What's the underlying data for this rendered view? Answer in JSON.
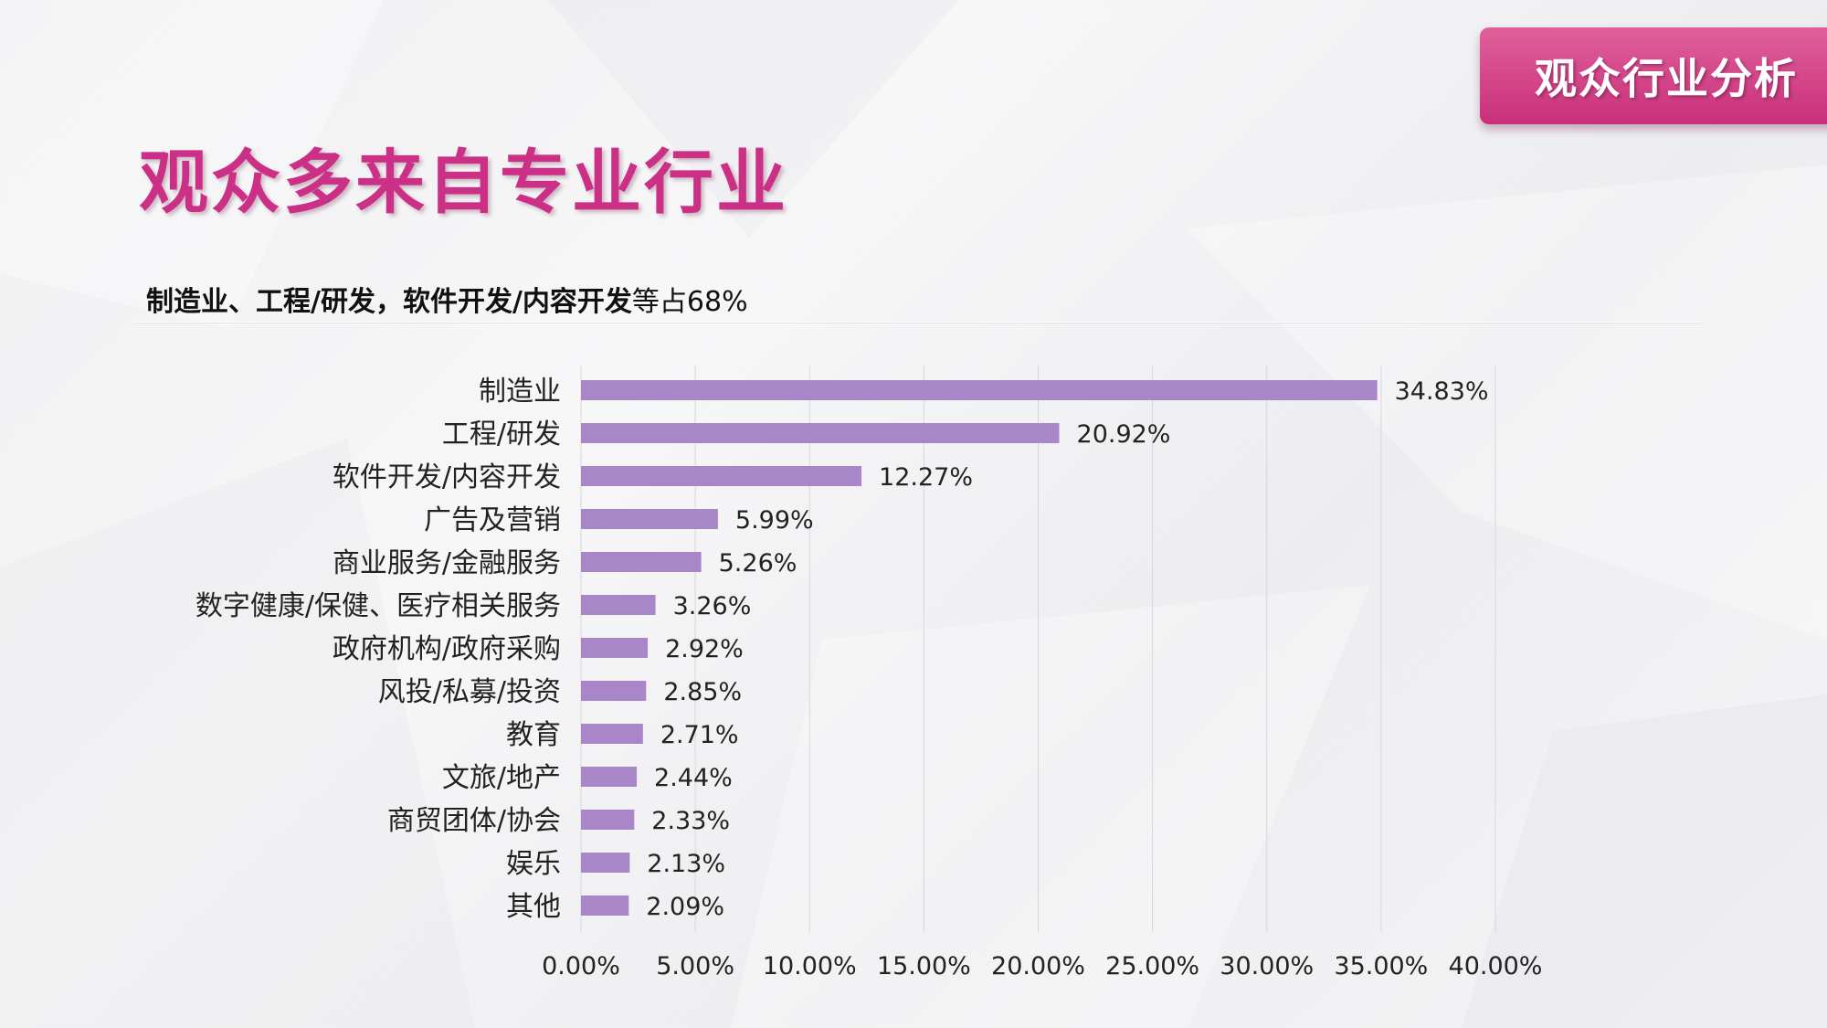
{
  "corner_tag": {
    "label": "观众行业分析"
  },
  "page_title": "观众多来自专业行业",
  "subtitle": {
    "strong": "制造业、工程/研发，软件开发/内容开发",
    "rest": "等占68%"
  },
  "colors": {
    "bar": "#a986c8",
    "title": "#cc2f86",
    "tag": "#d8468c",
    "grid": "#d7d7db"
  },
  "chart_data": {
    "type": "bar",
    "orientation": "horizontal",
    "categories": [
      "制造业",
      "工程/研发",
      "软件开发/内容开发",
      "广告及营销",
      "商业服务/金融服务",
      "数字健康/保健、医疗相关服务",
      "政府机构/政府采购",
      "风投/私募/投资",
      "教育",
      "文旅/地产",
      "商贸团体/协会",
      "娱乐",
      "其他"
    ],
    "values": [
      34.83,
      20.92,
      12.27,
      5.99,
      5.26,
      3.26,
      2.92,
      2.85,
      2.71,
      2.44,
      2.33,
      2.13,
      2.09
    ],
    "value_labels": [
      "34.83%",
      "20.92%",
      "12.27%",
      "5.99%",
      "5.26%",
      "3.26%",
      "2.92%",
      "2.85%",
      "2.71%",
      "2.44%",
      "2.33%",
      "2.13%",
      "2.09%"
    ],
    "xlim": [
      0,
      40
    ],
    "x_ticks": [
      0,
      5,
      10,
      15,
      20,
      25,
      30,
      35,
      40
    ],
    "x_tick_labels": [
      "0.00%",
      "5.00%",
      "10.00%",
      "15.00%",
      "20.00%",
      "25.00%",
      "30.00%",
      "35.00%",
      "40.00%"
    ],
    "grid": true,
    "legend": "none",
    "title": "",
    "xlabel": "",
    "ylabel": ""
  }
}
